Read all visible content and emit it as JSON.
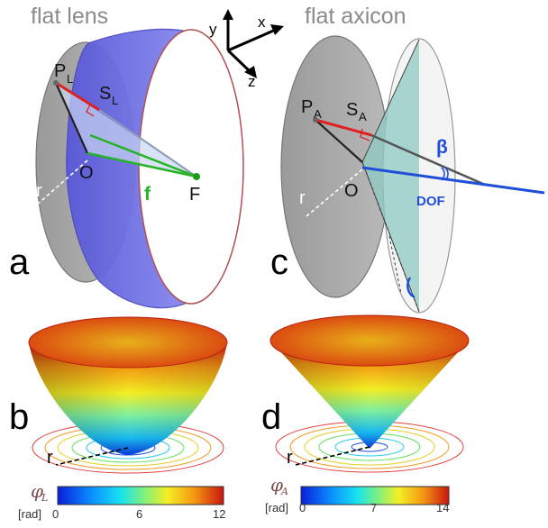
{
  "titles": {
    "left": "flat lens",
    "right": "flat axicon"
  },
  "panels": {
    "a": "a",
    "b": "b",
    "c": "c",
    "d": "d"
  },
  "axes": {
    "x": "x",
    "y": "y",
    "z": "z"
  },
  "lens": {
    "point": "P",
    "point_sub": "L",
    "surface": "S",
    "surface_sub": "L",
    "origin": "O",
    "radius": "r",
    "focal": "f",
    "focus": "F"
  },
  "axicon": {
    "point": "P",
    "point_sub": "A",
    "surface": "S",
    "surface_sub": "A",
    "origin": "O",
    "radius": "r",
    "angle": "β",
    "dof": "DOF"
  },
  "colorbar_lens": {
    "symbol": "φ",
    "sub": "L",
    "unit": "[rad]",
    "ticks": [
      "0",
      "6",
      "12"
    ]
  },
  "colorbar_axicon": {
    "symbol": "φ",
    "sub": "A",
    "unit": "[rad]",
    "ticks": [
      "0",
      "7",
      "14"
    ]
  },
  "colors": {
    "lens_blue": "#6f6fe0",
    "axicon_teal": "#8fc9c4",
    "disk_gray": "#a7a7a7",
    "green": "#27b327",
    "blue": "#1f4fd6",
    "red": "#e02020"
  }
}
